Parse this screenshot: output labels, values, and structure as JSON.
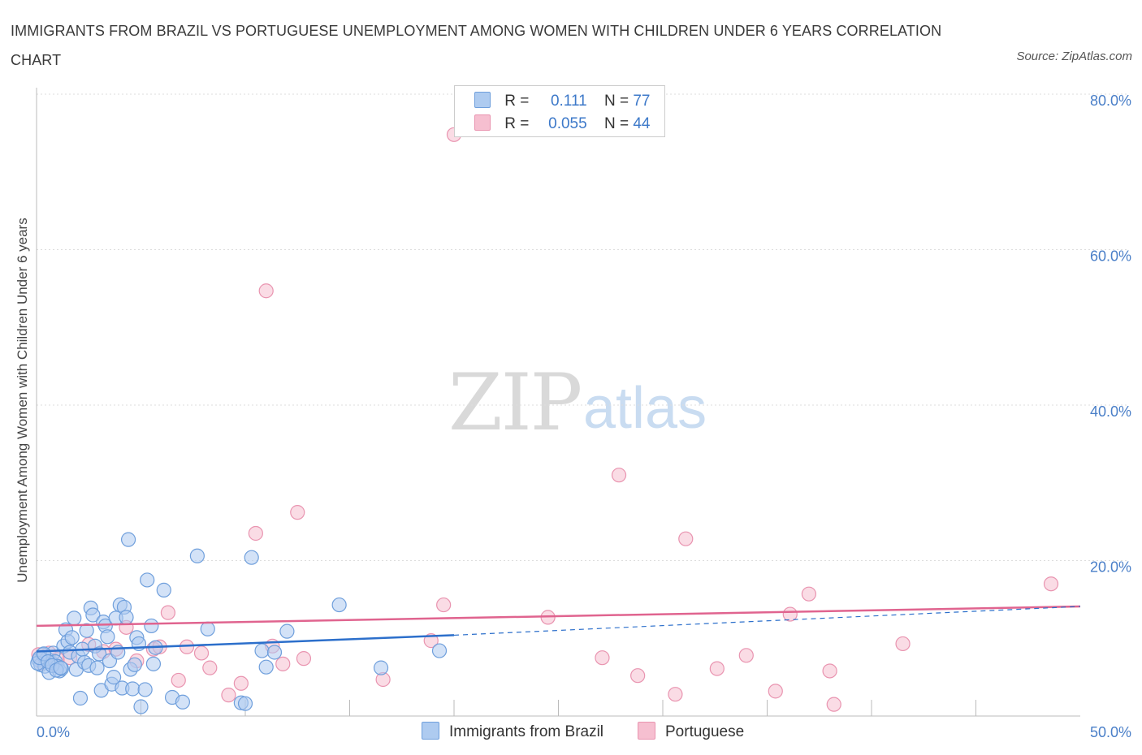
{
  "title": "IMMIGRANTS FROM BRAZIL VS PORTUGUESE UNEMPLOYMENT AMONG WOMEN WITH CHILDREN UNDER 6 YEARS CORRELATION CHART",
  "source": "Source: ZipAtlas.com",
  "watermark": {
    "zip": "ZIP",
    "atlas": "atlas"
  },
  "legend": {
    "series1": {
      "r_label": "R =",
      "r_value": "0.111",
      "n_label": "N =",
      "n_value": "77"
    },
    "series2": {
      "r_label": "R =",
      "r_value": "0.055",
      "n_label": "N =",
      "n_value": "44"
    }
  },
  "colors": {
    "brazil_fill": "#aecbf0",
    "brazil_stroke": "#6f9fdc",
    "brazil_line": "#2c6fcb",
    "portuguese_fill": "#f6bfd0",
    "portuguese_stroke": "#e994b0",
    "portuguese_line": "#e0648f",
    "grid": "#dddddd",
    "tick_label": "#4a7fc8"
  },
  "chart_data": {
    "type": "scatter",
    "title": "IMMIGRANTS FROM BRAZIL VS PORTUGUESE UNEMPLOYMENT AMONG WOMEN WITH CHILDREN UNDER 6 YEARS CORRELATION CHART",
    "xlabel": "",
    "ylabel": "Unemployment Among Women with Children Under 6 years",
    "xlim": [
      0,
      50
    ],
    "ylim": [
      0,
      80
    ],
    "x_tick_labels": [
      "0.0%",
      "50.0%"
    ],
    "y_ticks": [
      20,
      40,
      60,
      80
    ],
    "y_tick_labels": [
      "20.0%",
      "40.0%",
      "60.0%",
      "80.0%"
    ],
    "grid": true,
    "legend_position": "top-center",
    "series": [
      {
        "name": "Immigrants from Brazil",
        "r": 0.111,
        "n": 77,
        "trend": {
          "x": [
            0,
            20
          ],
          "y": [
            8.3,
            10.4
          ],
          "dashed_to_x": 50,
          "dashed_to_y": 14.1
        },
        "points": [
          [
            0.1,
            7.2
          ],
          [
            0.2,
            6.6
          ],
          [
            0.3,
            7.9
          ],
          [
            0.4,
            6.4
          ],
          [
            0.5,
            7.4
          ],
          [
            0.6,
            5.6
          ],
          [
            0.7,
            6.9
          ],
          [
            0.8,
            8.1
          ],
          [
            0.9,
            7.0
          ],
          [
            1.0,
            6.4
          ],
          [
            1.1,
            5.8
          ],
          [
            1.2,
            6.1
          ],
          [
            1.3,
            9.0
          ],
          [
            1.4,
            11.1
          ],
          [
            1.5,
            9.6
          ],
          [
            1.6,
            8.2
          ],
          [
            1.7,
            10.1
          ],
          [
            1.8,
            12.6
          ],
          [
            1.9,
            6.0
          ],
          [
            2.0,
            7.7
          ],
          [
            2.1,
            2.3
          ],
          [
            2.2,
            8.6
          ],
          [
            2.3,
            6.9
          ],
          [
            2.4,
            11.0
          ],
          [
            2.5,
            6.5
          ],
          [
            2.6,
            13.9
          ],
          [
            2.7,
            13.0
          ],
          [
            2.8,
            9.0
          ],
          [
            2.9,
            6.2
          ],
          [
            3.0,
            8.0
          ],
          [
            3.1,
            3.3
          ],
          [
            3.2,
            12.1
          ],
          [
            3.3,
            11.6
          ],
          [
            3.4,
            10.2
          ],
          [
            3.5,
            7.1
          ],
          [
            3.6,
            4.1
          ],
          [
            3.7,
            5.0
          ],
          [
            3.8,
            12.6
          ],
          [
            3.9,
            8.2
          ],
          [
            4.0,
            14.3
          ],
          [
            4.1,
            3.6
          ],
          [
            4.2,
            14.0
          ],
          [
            4.3,
            12.7
          ],
          [
            4.4,
            22.7
          ],
          [
            4.5,
            6.0
          ],
          [
            4.6,
            3.5
          ],
          [
            4.7,
            6.6
          ],
          [
            4.8,
            10.1
          ],
          [
            4.9,
            9.3
          ],
          [
            5.0,
            1.2
          ],
          [
            5.2,
            3.4
          ],
          [
            5.3,
            17.5
          ],
          [
            5.5,
            11.6
          ],
          [
            5.6,
            6.7
          ],
          [
            5.7,
            8.8
          ],
          [
            6.1,
            16.2
          ],
          [
            6.5,
            2.4
          ],
          [
            7.0,
            1.8
          ],
          [
            7.7,
            20.6
          ],
          [
            8.2,
            11.2
          ],
          [
            9.8,
            1.7
          ],
          [
            10.0,
            1.6
          ],
          [
            10.3,
            20.4
          ],
          [
            10.8,
            8.4
          ],
          [
            11.0,
            6.3
          ],
          [
            11.4,
            8.2
          ],
          [
            12.0,
            10.9
          ],
          [
            14.5,
            14.3
          ],
          [
            16.5,
            6.2
          ],
          [
            19.3,
            8.4
          ],
          [
            0.05,
            6.8
          ],
          [
            0.15,
            7.5
          ],
          [
            0.35,
            8.0
          ],
          [
            0.55,
            7.0
          ],
          [
            0.75,
            6.5
          ],
          [
            0.95,
            5.9
          ],
          [
            1.15,
            6.2
          ]
        ]
      },
      {
        "name": "Portuguese",
        "r": 0.055,
        "n": 44,
        "trend": {
          "x": [
            0,
            50
          ],
          "y": [
            11.6,
            14.1
          ]
        },
        "points": [
          [
            0.1,
            7.9
          ],
          [
            0.3,
            6.8
          ],
          [
            0.6,
            8.1
          ],
          [
            1.0,
            7.3
          ],
          [
            1.6,
            7.5
          ],
          [
            2.5,
            9.2
          ],
          [
            3.2,
            8.3
          ],
          [
            3.8,
            8.6
          ],
          [
            4.3,
            11.4
          ],
          [
            4.8,
            7.1
          ],
          [
            5.6,
            8.6
          ],
          [
            5.9,
            8.9
          ],
          [
            6.3,
            13.3
          ],
          [
            6.8,
            4.6
          ],
          [
            7.2,
            8.9
          ],
          [
            7.9,
            8.1
          ],
          [
            8.3,
            6.2
          ],
          [
            9.2,
            2.7
          ],
          [
            9.8,
            4.2
          ],
          [
            10.5,
            23.5
          ],
          [
            11.0,
            54.7
          ],
          [
            11.3,
            9.0
          ],
          [
            11.8,
            6.7
          ],
          [
            12.5,
            26.2
          ],
          [
            12.8,
            7.4
          ],
          [
            16.6,
            4.7
          ],
          [
            18.9,
            9.7
          ],
          [
            19.5,
            14.3
          ],
          [
            20.0,
            74.8
          ],
          [
            24.5,
            12.7
          ],
          [
            27.1,
            7.5
          ],
          [
            27.9,
            31.0
          ],
          [
            28.8,
            5.2
          ],
          [
            30.6,
            2.8
          ],
          [
            31.1,
            22.8
          ],
          [
            32.6,
            6.1
          ],
          [
            34.0,
            7.8
          ],
          [
            35.4,
            3.2
          ],
          [
            36.1,
            13.1
          ],
          [
            37.0,
            15.7
          ],
          [
            38.0,
            5.8
          ],
          [
            38.2,
            1.5
          ],
          [
            41.5,
            9.3
          ],
          [
            48.6,
            17.0
          ]
        ]
      }
    ],
    "bottom_legend": [
      "Immigrants from Brazil",
      "Portuguese"
    ]
  }
}
